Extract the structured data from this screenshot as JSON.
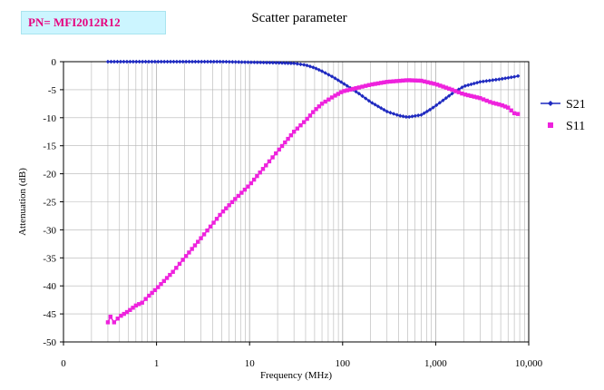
{
  "header": {
    "part_number": "PN= MFI2012R12"
  },
  "chart_data": {
    "type": "scatter",
    "title": "Scatter parameter",
    "xlabel": "Frequency (MHz)",
    "ylabel": "Attenuation (dB)",
    "xscale": "log",
    "xlim": [
      0.1,
      10000
    ],
    "ylim": [
      -50,
      0
    ],
    "grid": true,
    "legend_position": "right",
    "x_ticks": [
      {
        "value": 0.1,
        "label": "0"
      },
      {
        "value": 1,
        "label": "1"
      },
      {
        "value": 10,
        "label": "10"
      },
      {
        "value": 100,
        "label": "100"
      },
      {
        "value": 1000,
        "label": "1,000"
      },
      {
        "value": 10000,
        "label": "10,000"
      }
    ],
    "y_ticks": [
      0,
      -5,
      -10,
      -15,
      -20,
      -25,
      -30,
      -35,
      -40,
      -45,
      -50
    ],
    "series": [
      {
        "name": "S21",
        "color": "#1f2ac0",
        "marker": "diamond",
        "x": [
          0.3,
          0.5,
          1,
          2,
          5,
          10,
          20,
          30,
          40,
          50,
          60,
          80,
          100,
          150,
          200,
          300,
          400,
          500,
          700,
          900,
          1200,
          1500,
          2000,
          3000,
          5000,
          7000,
          8000
        ],
        "y": [
          0,
          0,
          0,
          0,
          0,
          -0.1,
          -0.2,
          -0.3,
          -0.6,
          -1.1,
          -1.7,
          -2.8,
          -3.8,
          -5.7,
          -7.2,
          -8.9,
          -9.6,
          -9.9,
          -9.5,
          -8.4,
          -6.9,
          -5.7,
          -4.4,
          -3.6,
          -3.1,
          -2.7,
          -2.5
        ]
      },
      {
        "name": "S11",
        "color": "#ee22dd",
        "marker": "square",
        "x": [
          0.3,
          0.32,
          0.35,
          0.4,
          0.5,
          0.6,
          0.7,
          0.8,
          1,
          1.5,
          2,
          3,
          5,
          7,
          10,
          15,
          20,
          30,
          40,
          50,
          60,
          80,
          100,
          150,
          200,
          300,
          500,
          700,
          1000,
          1500,
          2000,
          3000,
          4000,
          5000,
          6000,
          7000,
          8000
        ],
        "y": [
          -46.5,
          -45.5,
          -46.5,
          -45.5,
          -44.5,
          -43.5,
          -43,
          -42,
          -40.5,
          -37.5,
          -35,
          -31.5,
          -27,
          -24.5,
          -22,
          -18.5,
          -16,
          -12.5,
          -10.5,
          -8.7,
          -7.5,
          -6.2,
          -5.3,
          -4.6,
          -4.1,
          -3.6,
          -3.3,
          -3.4,
          -4,
          -5,
          -5.8,
          -6.5,
          -7.3,
          -7.7,
          -8.2,
          -9.2,
          -9.4
        ]
      }
    ]
  }
}
